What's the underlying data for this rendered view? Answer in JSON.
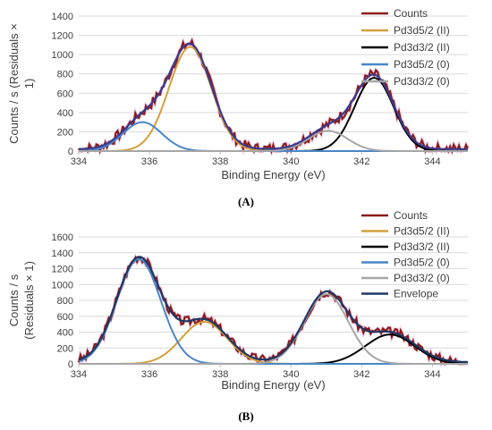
{
  "chart_data": [
    {
      "type": "line",
      "panel_label": "(A)",
      "xlabel": "Binding Energy (eV)",
      "ylabel_lines": [
        "Counts / s  (Residuals ×",
        "1)"
      ],
      "xlim": [
        334,
        345
      ],
      "ylim": [
        0,
        1400
      ],
      "xticks": [
        334,
        336,
        338,
        340,
        342,
        344
      ],
      "yticks": [
        0,
        200,
        400,
        600,
        800,
        1000,
        1200,
        1400
      ],
      "grid": true,
      "legend_position": "right",
      "series": [
        {
          "name": "Counts",
          "color": "#8b1a1a",
          "role": "counts"
        },
        {
          "name": "Pd3d5/2 (II)",
          "color": "#d4a03c",
          "role": "peak",
          "center": 337.15,
          "amp": 1080,
          "sigma": 0.6
        },
        {
          "name": "Pd3d3/2 (II)",
          "color": "#000000",
          "role": "peak",
          "center": 342.35,
          "amp": 760,
          "sigma": 0.55
        },
        {
          "name": "Pd3d5/2 (0)",
          "color": "#4a86c8",
          "role": "peak",
          "center": 335.8,
          "amp": 300,
          "sigma": 0.55
        },
        {
          "name": "Pd3d3/2 (0)",
          "color": "#a6a6a6",
          "role": "peak",
          "center": 341.05,
          "amp": 210,
          "sigma": 0.55
        },
        {
          "name": "",
          "color": "#3b3b8f",
          "role": "envelope"
        }
      ],
      "baseline": 20,
      "noise_seed": 7,
      "noise_amp": 55
    },
    {
      "type": "line",
      "panel_label": "(B)",
      "xlabel": "Binding Energy (eV)",
      "ylabel_lines": [
        "Counts / s",
        "(Residuals × 1)"
      ],
      "xlim": [
        334,
        345
      ],
      "ylim": [
        0,
        1600
      ],
      "xticks": [
        334,
        336,
        338,
        340,
        342,
        344
      ],
      "yticks": [
        0,
        200,
        400,
        600,
        800,
        1000,
        1200,
        1400,
        1600
      ],
      "grid": true,
      "legend_position": "right",
      "series": [
        {
          "name": "Counts",
          "color": "#8b1a1a",
          "role": "counts"
        },
        {
          "name": "Pd3d5/2 (II)",
          "color": "#d4a03c",
          "role": "peak",
          "center": 337.55,
          "amp": 530,
          "sigma": 0.65
        },
        {
          "name": "Pd3d3/2 (II)",
          "color": "#000000",
          "role": "peak",
          "center": 342.8,
          "amp": 370,
          "sigma": 0.7
        },
        {
          "name": "Pd3d5/2 (0)",
          "color": "#4a86c8",
          "role": "peak",
          "center": 335.7,
          "amp": 1320,
          "sigma": 0.62
        },
        {
          "name": "Pd3d3/2 (0)",
          "color": "#a6a6a6",
          "role": "peak",
          "center": 341.0,
          "amp": 880,
          "sigma": 0.62
        },
        {
          "name": "Envelope",
          "color": "#1f3864",
          "role": "envelope"
        }
      ],
      "baseline": 20,
      "noise_seed": 3,
      "noise_amp": 60
    }
  ]
}
